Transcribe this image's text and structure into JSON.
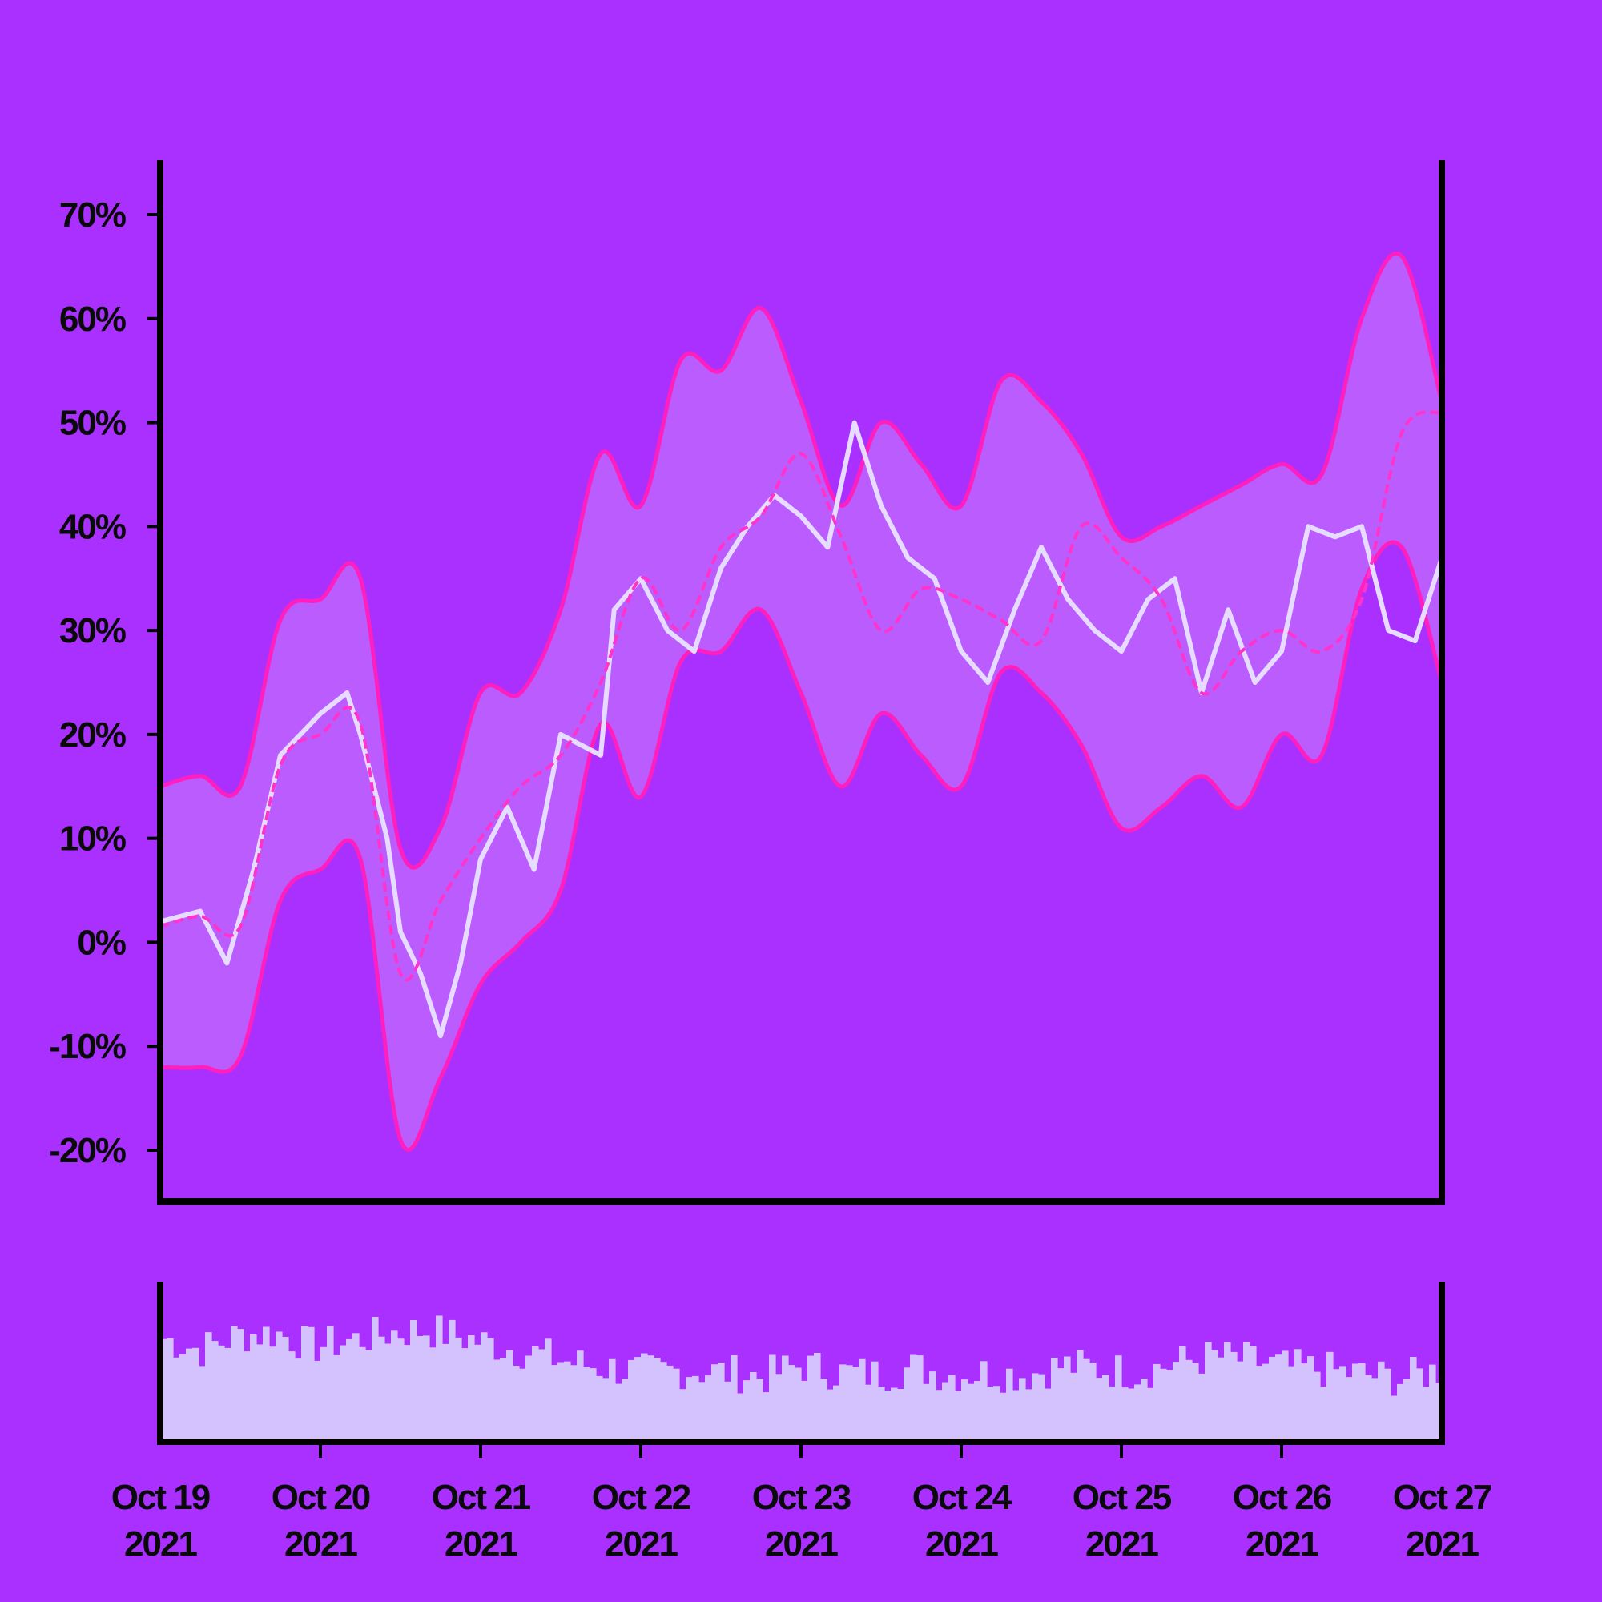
{
  "colors": {
    "background": "#a930ff",
    "band_fill": "#bb5cff",
    "band_line": "#ff1fbf",
    "price_line": "#e6dcff",
    "moving_average": "#ff33cc",
    "volume_bars": "#d4c2ff",
    "axis": "#000000"
  },
  "chart_data": [
    {
      "type": "line",
      "ylim": [
        -24,
        76
      ],
      "y_ticks": [
        -20,
        -10,
        0,
        10,
        20,
        30,
        40,
        50,
        60,
        70
      ],
      "y_tick_labels": [
        "-20%",
        "-10%",
        "0%",
        "10%",
        "20%",
        "30%",
        "40%",
        "50%",
        "60%",
        "70%"
      ],
      "x_range": [
        "2021-10-19",
        "2021-10-27"
      ],
      "x_tick_labels": [
        [
          "Oct 19",
          "2021"
        ],
        [
          "Oct 20",
          "2021"
        ],
        [
          "Oct 21",
          "2021"
        ],
        [
          "Oct 22",
          "2021"
        ],
        [
          "Oct 23",
          "2021"
        ],
        [
          "Oct 24",
          "2021"
        ],
        [
          "Oct 25",
          "2021"
        ],
        [
          "Oct 26",
          "2021"
        ],
        [
          "Oct 27",
          "2021"
        ]
      ],
      "grid": false,
      "series": [
        {
          "role": "price",
          "x": [
            "2021-10-19 00:00",
            "2021-10-19 06:00",
            "2021-10-19 10:00",
            "2021-10-19 14:00",
            "2021-10-19 18:00",
            "2021-10-20 00:00",
            "2021-10-20 04:00",
            "2021-10-20 06:00",
            "2021-10-20 10:00",
            "2021-10-20 12:00",
            "2021-10-20 15:00",
            "2021-10-20 18:00",
            "2021-10-20 21:00",
            "2021-10-21 00:00",
            "2021-10-21 04:00",
            "2021-10-21 08:00",
            "2021-10-21 12:00",
            "2021-10-21 18:00",
            "2021-10-21 20:00",
            "2021-10-22 00:00",
            "2021-10-22 04:00",
            "2021-10-22 08:00",
            "2021-10-22 12:00",
            "2021-10-22 16:00",
            "2021-10-22 20:00",
            "2021-10-23 00:00",
            "2021-10-23 04:00",
            "2021-10-23 08:00",
            "2021-10-23 12:00",
            "2021-10-23 16:00",
            "2021-10-23 20:00",
            "2021-10-24 00:00",
            "2021-10-24 04:00",
            "2021-10-24 08:00",
            "2021-10-24 12:00",
            "2021-10-24 16:00",
            "2021-10-24 20:00",
            "2021-10-25 00:00",
            "2021-10-25 04:00",
            "2021-10-25 08:00",
            "2021-10-25 12:00",
            "2021-10-25 16:00",
            "2021-10-25 20:00",
            "2021-10-26 00:00",
            "2021-10-26 04:00",
            "2021-10-26 08:00",
            "2021-10-26 12:00",
            "2021-10-26 16:00",
            "2021-10-26 20:00",
            "2021-10-27 00:00"
          ],
          "y": [
            2,
            3,
            -2,
            7,
            18,
            22,
            24,
            20,
            10,
            1,
            -3,
            -9,
            -2,
            8,
            13,
            7,
            20,
            18,
            32,
            35,
            30,
            28,
            36,
            40,
            43,
            41,
            38,
            50,
            42,
            37,
            35,
            28,
            25,
            32,
            38,
            33,
            30,
            28,
            33,
            35,
            24,
            32,
            25,
            28,
            40,
            39,
            40,
            30,
            29,
            37
          ]
        },
        {
          "role": "moving_average",
          "x": [
            "2021-10-19 00:00",
            "2021-10-19 06:00",
            "2021-10-19 12:00",
            "2021-10-19 18:00",
            "2021-10-20 00:00",
            "2021-10-20 06:00",
            "2021-10-20 12:00",
            "2021-10-20 18:00",
            "2021-10-21 00:00",
            "2021-10-21 06:00",
            "2021-10-21 12:00",
            "2021-10-21 18:00",
            "2021-10-22 00:00",
            "2021-10-22 06:00",
            "2021-10-22 12:00",
            "2021-10-22 18:00",
            "2021-10-23 00:00",
            "2021-10-23 06:00",
            "2021-10-23 12:00",
            "2021-10-23 18:00",
            "2021-10-24 00:00",
            "2021-10-24 06:00",
            "2021-10-24 12:00",
            "2021-10-24 18:00",
            "2021-10-25 00:00",
            "2021-10-25 06:00",
            "2021-10-25 12:00",
            "2021-10-25 18:00",
            "2021-10-26 00:00",
            "2021-10-26 06:00",
            "2021-10-26 12:00",
            "2021-10-26 18:00",
            "2021-10-27 00:00"
          ],
          "y": [
            1.5,
            2.5,
            1.5,
            17,
            20,
            21,
            -3,
            4,
            10,
            15,
            18,
            25,
            35,
            30,
            38,
            41,
            47,
            39,
            30,
            34,
            33,
            31,
            29,
            40,
            37,
            33,
            24,
            28,
            30,
            28,
            33,
            49,
            51
          ]
        },
        {
          "role": "upper_band",
          "x": [
            "2021-10-19 00:00",
            "2021-10-19 06:00",
            "2021-10-19 12:00",
            "2021-10-19 18:00",
            "2021-10-20 00:00",
            "2021-10-20 06:00",
            "2021-10-20 12:00",
            "2021-10-20 18:00",
            "2021-10-21 00:00",
            "2021-10-21 06:00",
            "2021-10-21 12:00",
            "2021-10-21 18:00",
            "2021-10-22 00:00",
            "2021-10-22 06:00",
            "2021-10-22 12:00",
            "2021-10-22 18:00",
            "2021-10-23 00:00",
            "2021-10-23 06:00",
            "2021-10-23 12:00",
            "2021-10-23 18:00",
            "2021-10-24 00:00",
            "2021-10-24 06:00",
            "2021-10-24 12:00",
            "2021-10-24 18:00",
            "2021-10-25 00:00",
            "2021-10-25 06:00",
            "2021-10-25 12:00",
            "2021-10-25 18:00",
            "2021-10-26 00:00",
            "2021-10-26 06:00",
            "2021-10-26 12:00",
            "2021-10-26 18:00",
            "2021-10-27 00:00"
          ],
          "y": [
            15,
            16,
            15,
            31,
            33,
            35,
            9,
            11,
            24,
            24,
            32,
            47,
            42,
            56,
            55,
            61,
            52,
            42,
            50,
            46,
            42,
            54,
            52,
            47,
            39,
            40,
            42,
            44,
            46,
            45,
            60,
            66,
            52
          ]
        },
        {
          "role": "lower_band",
          "x": [
            "2021-10-19 00:00",
            "2021-10-19 06:00",
            "2021-10-19 12:00",
            "2021-10-19 18:00",
            "2021-10-20 00:00",
            "2021-10-20 06:00",
            "2021-10-20 12:00",
            "2021-10-20 18:00",
            "2021-10-21 00:00",
            "2021-10-21 06:00",
            "2021-10-21 12:00",
            "2021-10-21 18:00",
            "2021-10-22 00:00",
            "2021-10-22 06:00",
            "2021-10-22 12:00",
            "2021-10-22 18:00",
            "2021-10-23 00:00",
            "2021-10-23 06:00",
            "2021-10-23 12:00",
            "2021-10-23 18:00",
            "2021-10-24 00:00",
            "2021-10-24 06:00",
            "2021-10-24 12:00",
            "2021-10-24 18:00",
            "2021-10-25 00:00",
            "2021-10-25 06:00",
            "2021-10-25 12:00",
            "2021-10-25 18:00",
            "2021-10-26 00:00",
            "2021-10-26 06:00",
            "2021-10-26 12:00",
            "2021-10-26 18:00",
            "2021-10-27 00:00"
          ],
          "y": [
            -12,
            -12,
            -11,
            4,
            7,
            8,
            -19,
            -13,
            -4,
            0,
            5,
            21,
            14,
            27,
            28,
            32,
            24,
            15,
            22,
            18,
            15,
            26,
            24,
            19,
            11,
            13,
            16,
            13,
            20,
            18,
            34,
            38,
            25
          ]
        }
      ]
    },
    {
      "type": "bar",
      "role": "volume",
      "bar_count": 200,
      "relative_level_anchors": [
        0.92,
        0.82,
        0.95,
        0.97,
        0.85,
        0.9,
        0.97,
        1.0,
        0.93,
        0.85,
        0.78,
        0.7,
        0.65,
        0.62,
        0.64,
        0.62,
        0.58,
        0.68,
        0.62,
        0.6,
        0.66,
        0.6,
        0.62,
        0.6,
        0.68,
        0.65,
        0.62,
        0.7,
        0.76,
        0.72,
        0.66,
        0.64,
        0.6,
        0.56,
        0.64
      ]
    }
  ]
}
